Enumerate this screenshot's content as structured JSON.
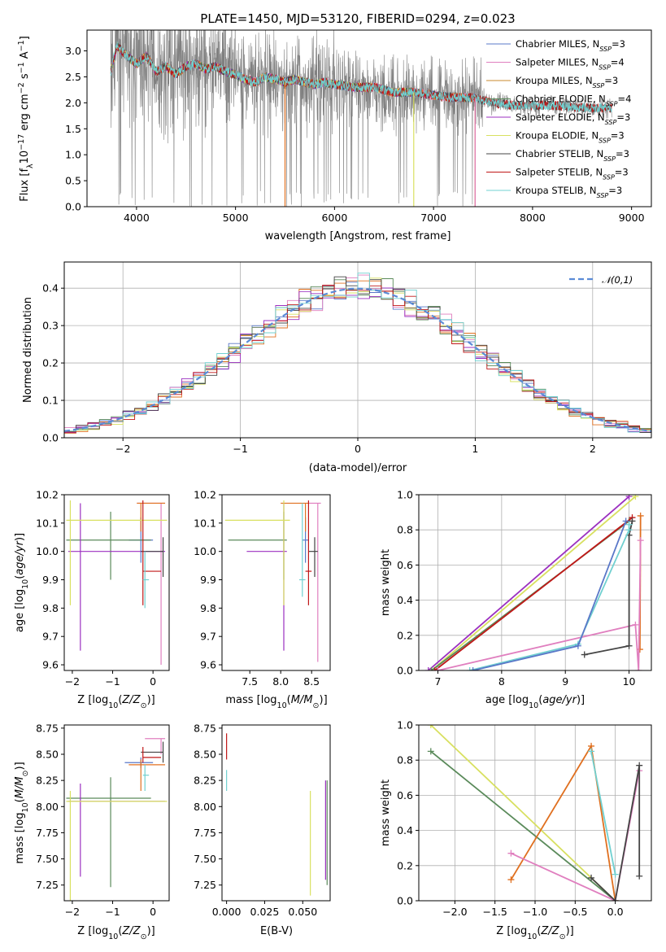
{
  "figure_title": "PLATE=1450, MJD=53120, FIBERID=0294, z=0.023",
  "colors": {
    "Chabrier MILES": "#5a78c8",
    "Salpeter MILES": "#e07fbf",
    "Kroupa MILES": "#c98a2c",
    "Chabrier ELODIE": "#5a8a5a",
    "Salpeter ELODIE": "#9b30c0",
    "Kroupa ELODIE": "#d8e060",
    "Chabrier STELIB": "#444444",
    "Salpeter STELIB": "#c01818",
    "Kroupa STELIB": "#70d0d0",
    "Kroupa MILES marker": "#e07020",
    "data": "#808080",
    "normal": "#5b8bd6"
  },
  "chart_data": [
    {
      "id": "spectrum",
      "type": "line",
      "title": "PLATE=1450, MJD=53120, FIBERID=0294, z=0.023",
      "xlabel": "wavelength [Angstrom, rest frame]",
      "ylabel": "Flux [f_λ 10^-17 erg cm^-2 s^-1 A^-1]",
      "xlim": [
        3500,
        9200
      ],
      "ylim": [
        0,
        3.4
      ],
      "xticks": [
        4000,
        5000,
        6000,
        7000,
        8000,
        9000
      ],
      "yticks": [
        0.0,
        0.5,
        1.0,
        1.5,
        2.0,
        2.5,
        3.0
      ],
      "grid": false,
      "legend_position": "top-right",
      "legend": [
        {
          "label": "Chabrier MILES, N",
          "sub": "SSP",
          "suffix": "=3"
        },
        {
          "label": "Salpeter MILES, N",
          "sub": "SSP",
          "suffix": "=4"
        },
        {
          "label": "Kroupa MILES, N",
          "sub": "SSP",
          "suffix": "=3"
        },
        {
          "label": "Chabrier ELODIE, N",
          "sub": "SSP",
          "suffix": "=4"
        },
        {
          "label": "Salpeter ELODIE, N",
          "sub": "SSP",
          "suffix": "=3"
        },
        {
          "label": "Kroupa ELODIE, N",
          "sub": "SSP",
          "suffix": "=3"
        },
        {
          "label": "Chabrier STELIB, N",
          "sub": "SSP",
          "suffix": "=3"
        },
        {
          "label": "Salpeter STELIB, N",
          "sub": "SSP",
          "suffix": "=3"
        },
        {
          "label": "Kroupa STELIB, N",
          "sub": "SSP",
          "suffix": "=3"
        }
      ],
      "model_continuum": {
        "x": [
          3740,
          3800,
          3900,
          4000,
          4100,
          4200,
          4300,
          4400,
          4500,
          4600,
          4700,
          4800,
          4900,
          5000,
          5100,
          5200,
          5300,
          5400,
          5500,
          5600,
          5700,
          5800,
          5900,
          6000,
          6200,
          6400,
          6600,
          6800,
          7000,
          7200,
          7400,
          7600,
          7800,
          8000,
          8200,
          8400,
          8600,
          8800
        ],
        "y": [
          2.6,
          3.1,
          2.9,
          2.75,
          2.9,
          2.6,
          2.7,
          2.55,
          2.7,
          2.75,
          2.65,
          2.7,
          2.6,
          2.55,
          2.45,
          2.4,
          2.5,
          2.45,
          2.4,
          2.45,
          2.4,
          2.35,
          2.4,
          2.35,
          2.3,
          2.3,
          2.2,
          2.2,
          2.15,
          2.1,
          2.1,
          2.0,
          1.95,
          1.95,
          1.95,
          1.92,
          1.9,
          1.9
        ]
      },
      "model_dropouts": [
        {
          "model": "Kroupa MILES",
          "x": 5500
        },
        {
          "model": "Kroupa MILES",
          "x": 7420
        },
        {
          "model": "Kroupa ELODIE",
          "x": 6800
        },
        {
          "model": "Salpeter MILES",
          "x": 7420
        }
      ]
    },
    {
      "id": "residuals",
      "type": "line",
      "xlabel": "(data-model)/error",
      "ylabel": "Normed distribution",
      "xlim": [
        -2.5,
        2.5
      ],
      "ylim": [
        0,
        0.47
      ],
      "xticks": [
        -2,
        -1,
        0,
        1,
        2
      ],
      "yticks": [
        0.0,
        0.1,
        0.2,
        0.3,
        0.4
      ],
      "grid": true,
      "legend_position": "top-right",
      "legend": "𝒩(0,1)",
      "bin_width": 0.1
    },
    {
      "id": "age-vs-Z",
      "type": "scatter",
      "xlabel": "Z [log10(Z/Z⊙)]",
      "ylabel": "age [log10(age/yr)]",
      "xlim": [
        -2.2,
        0.4
      ],
      "ylim": [
        9.58,
        10.2
      ],
      "xticks": [
        -2,
        -1,
        0
      ],
      "yticks": [
        9.6,
        9.7,
        9.8,
        9.9,
        10.0,
        10.1,
        10.2
      ],
      "points": [
        {
          "model": "Chabrier MILES",
          "x": -0.3,
          "y": 10.04,
          "xerr": [
            0.3,
            0.3
          ],
          "yerr": [
            0.08,
            0.08
          ]
        },
        {
          "model": "Salpeter MILES",
          "x": 0.2,
          "y": 10.17,
          "xerr": [
            0.6,
            0.1
          ],
          "yerr": [
            0.57,
            0.0
          ]
        },
        {
          "model": "Kroupa MILES",
          "x": -0.3,
          "y": 10.17,
          "xerr": [
            0.1,
            0.6
          ],
          "yerr": [
            0.1,
            0.0
          ]
        },
        {
          "model": "Chabrier ELODIE",
          "x": -1.05,
          "y": 10.04,
          "xerr": [
            1.1,
            1.0
          ],
          "yerr": [
            0.14,
            0.1
          ]
        },
        {
          "model": "Salpeter ELODIE",
          "x": -1.8,
          "y": 10.0,
          "xerr": [
            0.3,
            2.1
          ],
          "yerr": [
            0.35,
            0.17
          ]
        },
        {
          "model": "Kroupa ELODIE",
          "x": -2.05,
          "y": 10.11,
          "xerr": [
            0.1,
            2.4
          ],
          "yerr": [
            0.3,
            0.07
          ]
        },
        {
          "model": "Chabrier STELIB",
          "x": 0.25,
          "y": 10.0,
          "xerr": [
            0.55,
            0.0
          ],
          "yerr": [
            0.09,
            0.05
          ]
        },
        {
          "model": "Salpeter STELIB",
          "x": -0.25,
          "y": 9.93,
          "xerr": [
            0.0,
            0.45
          ],
          "yerr": [
            0.12,
            0.25
          ]
        },
        {
          "model": "Kroupa STELIB",
          "x": -0.2,
          "y": 9.9,
          "xerr": [
            0.05,
            0.1
          ],
          "yerr": [
            0.1,
            0.1
          ]
        }
      ]
    },
    {
      "id": "age-vs-mass",
      "type": "scatter",
      "xlabel": "mass [log10(M/M⊙)]",
      "ylabel": "",
      "xlim": [
        7.05,
        8.8
      ],
      "ylim": [
        9.58,
        10.2
      ],
      "xticks": [
        7.5,
        8.0,
        8.5
      ],
      "yticks": [
        9.6,
        9.7,
        9.8,
        9.9,
        10.0,
        10.1,
        10.2
      ],
      "points": [
        {
          "model": "Chabrier MILES",
          "x": 8.4,
          "y": 10.04,
          "xerr": [
            0.05,
            0.05
          ],
          "yerr": [
            0.08,
            0.08
          ]
        },
        {
          "model": "Salpeter MILES",
          "x": 8.6,
          "y": 10.17,
          "xerr": [
            0.15,
            0.05
          ],
          "yerr": [
            0.56,
            0.0
          ]
        },
        {
          "model": "Kroupa MILES",
          "x": 8.4,
          "y": 10.17,
          "xerr": [
            0.4,
            0.05
          ],
          "yerr": [
            0.1,
            0.0
          ]
        },
        {
          "model": "Chabrier ELODIE",
          "x": 8.05,
          "y": 10.04,
          "xerr": [
            0.9,
            0.05
          ],
          "yerr": [
            0.14,
            0.1
          ]
        },
        {
          "model": "Salpeter ELODIE",
          "x": 8.05,
          "y": 10.0,
          "xerr": [
            0.6,
            0.05
          ],
          "yerr": [
            0.35,
            0.17
          ]
        },
        {
          "model": "Kroupa ELODIE",
          "x": 8.05,
          "y": 10.11,
          "xerr": [
            0.95,
            0.1
          ],
          "yerr": [
            0.3,
            0.07
          ]
        },
        {
          "model": "Chabrier STELIB",
          "x": 8.55,
          "y": 10.0,
          "xerr": [
            0.1,
            0.05
          ],
          "yerr": [
            0.09,
            0.05
          ]
        },
        {
          "model": "Salpeter STELIB",
          "x": 8.45,
          "y": 9.93,
          "xerr": [
            0.05,
            0.05
          ],
          "yerr": [
            0.12,
            0.25
          ]
        },
        {
          "model": "Kroupa STELIB",
          "x": 8.35,
          "y": 9.9,
          "xerr": [
            0.05,
            0.05
          ],
          "yerr": [
            0.06,
            0.27
          ]
        }
      ]
    },
    {
      "id": "massweight-vs-age",
      "type": "line",
      "xlabel": "age [log10(age/yr)]",
      "ylabel": "mass weight",
      "xlim": [
        6.7,
        10.35
      ],
      "ylim": [
        0,
        1.0
      ],
      "xticks": [
        7,
        8,
        9,
        10
      ],
      "yticks": [
        0.0,
        0.2,
        0.4,
        0.6,
        0.8,
        1.0
      ],
      "grid": true,
      "series": [
        {
          "model": "Salpeter ELODIE",
          "x": [
            6.85,
            10.0
          ],
          "y": [
            0.0,
            0.99
          ]
        },
        {
          "model": "Kroupa ELODIE",
          "x": [
            6.9,
            10.1
          ],
          "y": [
            0.0,
            0.99
          ]
        },
        {
          "model": "Chabrier ELODIE",
          "x": [
            6.9,
            10.0
          ],
          "y": [
            0.0,
            0.85
          ]
        },
        {
          "model": "Salpeter STELIB",
          "x": [
            6.95,
            10.05
          ],
          "y": [
            0.0,
            0.87
          ]
        },
        {
          "model": "Kroupa MILES",
          "x": [
            10.18,
            10.17
          ],
          "y": [
            0.88,
            0.12
          ]
        },
        {
          "model": "Salpeter MILES",
          "x": [
            7.0,
            10.1,
            10.15,
            10.18
          ],
          "y": [
            0.0,
            0.26,
            0.0,
            0.74
          ]
        },
        {
          "model": "Chabrier STELIB",
          "x": [
            9.3,
            10.0,
            10.0,
            10.05
          ],
          "y": [
            0.09,
            0.14,
            0.77,
            0.85
          ]
        },
        {
          "model": "Kroupa STELIB",
          "x": [
            7.5,
            9.2,
            10.0,
            10.0
          ],
          "y": [
            0.0,
            0.15,
            0.8,
            0.83
          ]
        },
        {
          "model": "Chabrier MILES",
          "x": [
            7.55,
            9.2,
            9.95
          ],
          "y": [
            0.0,
            0.14,
            0.85
          ]
        }
      ]
    },
    {
      "id": "mass-vs-Z",
      "type": "scatter",
      "xlabel": "Z [log10(Z/Z⊙)]",
      "ylabel": "mass [log10(M/M⊙)]",
      "xlim": [
        -2.2,
        0.4
      ],
      "ylim": [
        7.1,
        8.78
      ],
      "xticks": [
        -2,
        -1,
        0
      ],
      "yticks": [
        7.25,
        7.5,
        7.75,
        8.0,
        8.25,
        8.5,
        8.75
      ],
      "points": [
        {
          "model": "Chabrier MILES",
          "x": -0.3,
          "y": 8.42,
          "xerr": [
            0.4,
            0.3
          ],
          "yerr": [
            0.05,
            0.05
          ]
        },
        {
          "model": "Salpeter MILES",
          "x": 0.2,
          "y": 8.65,
          "xerr": [
            0.4,
            0.1
          ],
          "yerr": [
            0.15,
            0.0
          ]
        },
        {
          "model": "Kroupa MILES",
          "x": -0.3,
          "y": 8.4,
          "xerr": [
            0.3,
            0.6
          ],
          "yerr": [
            0.25,
            0.05
          ]
        },
        {
          "model": "Chabrier ELODIE",
          "x": -1.05,
          "y": 8.08,
          "xerr": [
            1.1,
            1.0
          ],
          "yerr": [
            0.85,
            0.2
          ]
        },
        {
          "model": "Salpeter ELODIE",
          "x": -1.8,
          "y": 8.05,
          "xerr": [
            0.3,
            2.1
          ],
          "yerr": [
            0.72,
            0.17
          ]
        },
        {
          "model": "Kroupa ELODIE",
          "x": -2.05,
          "y": 8.05,
          "xerr": [
            0.1,
            2.4
          ],
          "yerr": [
            0.95,
            0.1
          ]
        },
        {
          "model": "Chabrier STELIB",
          "x": 0.25,
          "y": 8.52,
          "xerr": [
            0.55,
            0.0
          ],
          "yerr": [
            0.1,
            0.1
          ]
        },
        {
          "model": "Salpeter STELIB",
          "x": -0.25,
          "y": 8.47,
          "xerr": [
            0.0,
            0.45
          ],
          "yerr": [
            0.05,
            0.1
          ]
        },
        {
          "model": "Kroupa STELIB",
          "x": -0.2,
          "y": 8.3,
          "xerr": [
            0.05,
            0.1
          ],
          "yerr": [
            0.15,
            0.1
          ]
        }
      ]
    },
    {
      "id": "mass-vs-EBV",
      "type": "scatter",
      "xlabel": "E(B-V)",
      "ylabel": "",
      "xlim": [
        -0.003,
        0.068
      ],
      "ylim": [
        7.1,
        8.78
      ],
      "xticks": [
        0.0,
        0.025,
        0.05
      ],
      "xtick_labels": [
        "0.000",
        "0.025",
        "0.050"
      ],
      "yticks": [
        7.25,
        7.5,
        7.75,
        8.0,
        8.25,
        8.5,
        8.75
      ],
      "points": [
        {
          "model": "Salpeter STELIB",
          "x": 0.0,
          "y": 8.55,
          "yerr": [
            0.1,
            0.15
          ]
        },
        {
          "model": "Kroupa STELIB",
          "x": 0.0,
          "y": 8.25,
          "yerr": [
            0.1,
            0.1
          ]
        },
        {
          "model": "Kroupa ELODIE",
          "x": 0.055,
          "y": 7.65,
          "yerr": [
            0.5,
            0.5
          ]
        },
        {
          "model": "Salpeter ELODIE",
          "x": 0.065,
          "y": 7.8,
          "yerr": [
            0.5,
            0.45
          ]
        },
        {
          "model": "Chabrier ELODIE",
          "x": 0.066,
          "y": 7.75,
          "yerr": [
            0.5,
            0.5
          ]
        }
      ]
    },
    {
      "id": "massweight-vs-Z",
      "type": "line",
      "xlabel": "Z [log10(Z/Z⊙)]",
      "ylabel": "mass weight",
      "xlim": [
        -2.45,
        0.45
      ],
      "ylim": [
        0,
        1.0
      ],
      "xticks": [
        -2.0,
        -1.5,
        -1.0,
        -0.5,
        0.0
      ],
      "yticks": [
        0.0,
        0.2,
        0.4,
        0.6,
        0.8,
        1.0
      ],
      "grid": true,
      "series": [
        {
          "model": "Kroupa ELODIE",
          "x": [
            -2.3,
            0.0
          ],
          "y": [
            1.0,
            0.0
          ]
        },
        {
          "model": "Chabrier ELODIE",
          "x": [
            -2.3,
            0.0
          ],
          "y": [
            0.85,
            0.0
          ]
        },
        {
          "model": "Kroupa MILES",
          "x": [
            -1.3,
            -0.3,
            0.0
          ],
          "y": [
            0.12,
            0.88,
            0.0
          ]
        },
        {
          "model": "Kroupa STELIB",
          "x": [
            -0.3,
            0.0
          ],
          "y": [
            0.85,
            0.15
          ]
        },
        {
          "model": "Salpeter MILES",
          "x": [
            -1.3,
            0.0,
            0.3
          ],
          "y": [
            0.27,
            0.0,
            0.74
          ]
        },
        {
          "model": "Chabrier STELIB",
          "x": [
            -0.3,
            0.0,
            0.3,
            0.3
          ],
          "y": [
            0.13,
            0.0,
            0.77,
            0.14
          ]
        }
      ]
    }
  ]
}
